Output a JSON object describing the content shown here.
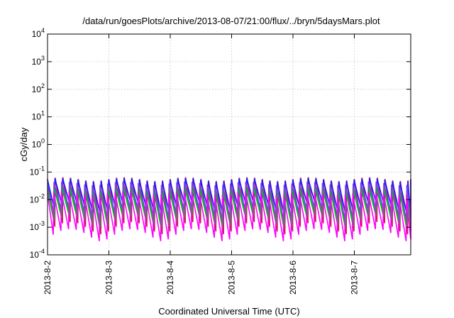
{
  "chart_data": {
    "type": "line",
    "title": "/data/run/goesPlots/archive/2013-08-07/21:00/flux/../bryn/5daysMars.plot",
    "xlabel": "Coordinated Universal Time (UTC)",
    "ylabel": "cGy/day",
    "yscale": "log",
    "ylim": [
      0.0001,
      10000
    ],
    "xlim": [
      "2013-08-02T00:00",
      "2013-08-07T21:00"
    ],
    "grid": true,
    "x_tick_labels": [
      "2013-8-2",
      "2013-8-3",
      "2013-8-4",
      "2013-8-5",
      "2013-8-6",
      "2013-8-7"
    ],
    "y_tick_labels": [
      {
        "base": "10",
        "exp": "-4",
        "value": 0.0001
      },
      {
        "base": "10",
        "exp": "-3",
        "value": 0.001
      },
      {
        "base": "10",
        "exp": "-2",
        "value": 0.01
      },
      {
        "base": "10",
        "exp": "-1",
        "value": 0.1
      },
      {
        "base": "10",
        "exp": "0",
        "value": 1
      },
      {
        "base": "10",
        "exp": "1",
        "value": 10
      },
      {
        "base": "10",
        "exp": "2",
        "value": 100
      },
      {
        "base": "10",
        "exp": "3",
        "value": 1000
      },
      {
        "base": "10",
        "exp": "4",
        "value": 10000
      }
    ],
    "sawtooth_period_hours": 3,
    "series": [
      {
        "color": "#d4145a",
        "peak": 0.065,
        "trough": 0.0009
      },
      {
        "color": "#1a1aff",
        "peak": 0.06,
        "trough": 0.004
      },
      {
        "color": "#00a0a0",
        "peak": 0.035,
        "trough": 0.002
      },
      {
        "color": "#00c000",
        "peak": 0.028,
        "trough": 0.0015
      },
      {
        "color": "#7b3fe4",
        "peak": 0.045,
        "trough": 0.003
      },
      {
        "color": "#ff00ff",
        "peak": 0.02,
        "trough": 0.0005
      }
    ]
  }
}
